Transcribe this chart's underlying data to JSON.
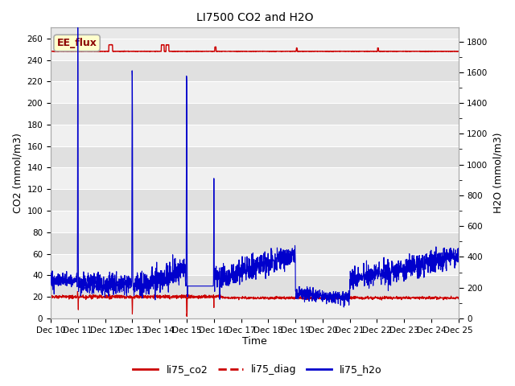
{
  "title": "LI7500 CO2 and H2O",
  "xlabel": "Time",
  "ylabel_left": "CO2 (mmol/m3)",
  "ylabel_right": "H2O (mmol/m3)",
  "ylim_left": [
    0,
    270
  ],
  "ylim_right": [
    0,
    1890
  ],
  "background_color": "#ffffff",
  "plot_bg_color": "#e8e8e8",
  "annotation_text": "EE_flux",
  "annotation_bg": "#ffffcc",
  "annotation_border": "#aaaaaa",
  "x_tick_labels": [
    "Dec 10",
    "Dec 11",
    "Dec 12",
    "Dec 13",
    "Dec 14",
    "Dec 15",
    "Dec 16",
    "Dec 17",
    "Dec 18",
    "Dec 19",
    "Dec 20",
    "Dec 21",
    "Dec 22",
    "Dec 23",
    "Dec 24",
    "Dec 25"
  ],
  "legend_labels": [
    "li75_co2",
    "li75_diag",
    "li75_h2o"
  ],
  "legend_colors": [
    "#cc0000",
    "#cc0000",
    "#0000cc"
  ],
  "co2_color": "#cc0000",
  "diag_color": "#cc0000",
  "h2o_color": "#0000cc",
  "grid_color": "#ffffff",
  "tick_label_fontsize": 7.5,
  "title_fontsize": 10,
  "n": 2160,
  "n_days": 15
}
